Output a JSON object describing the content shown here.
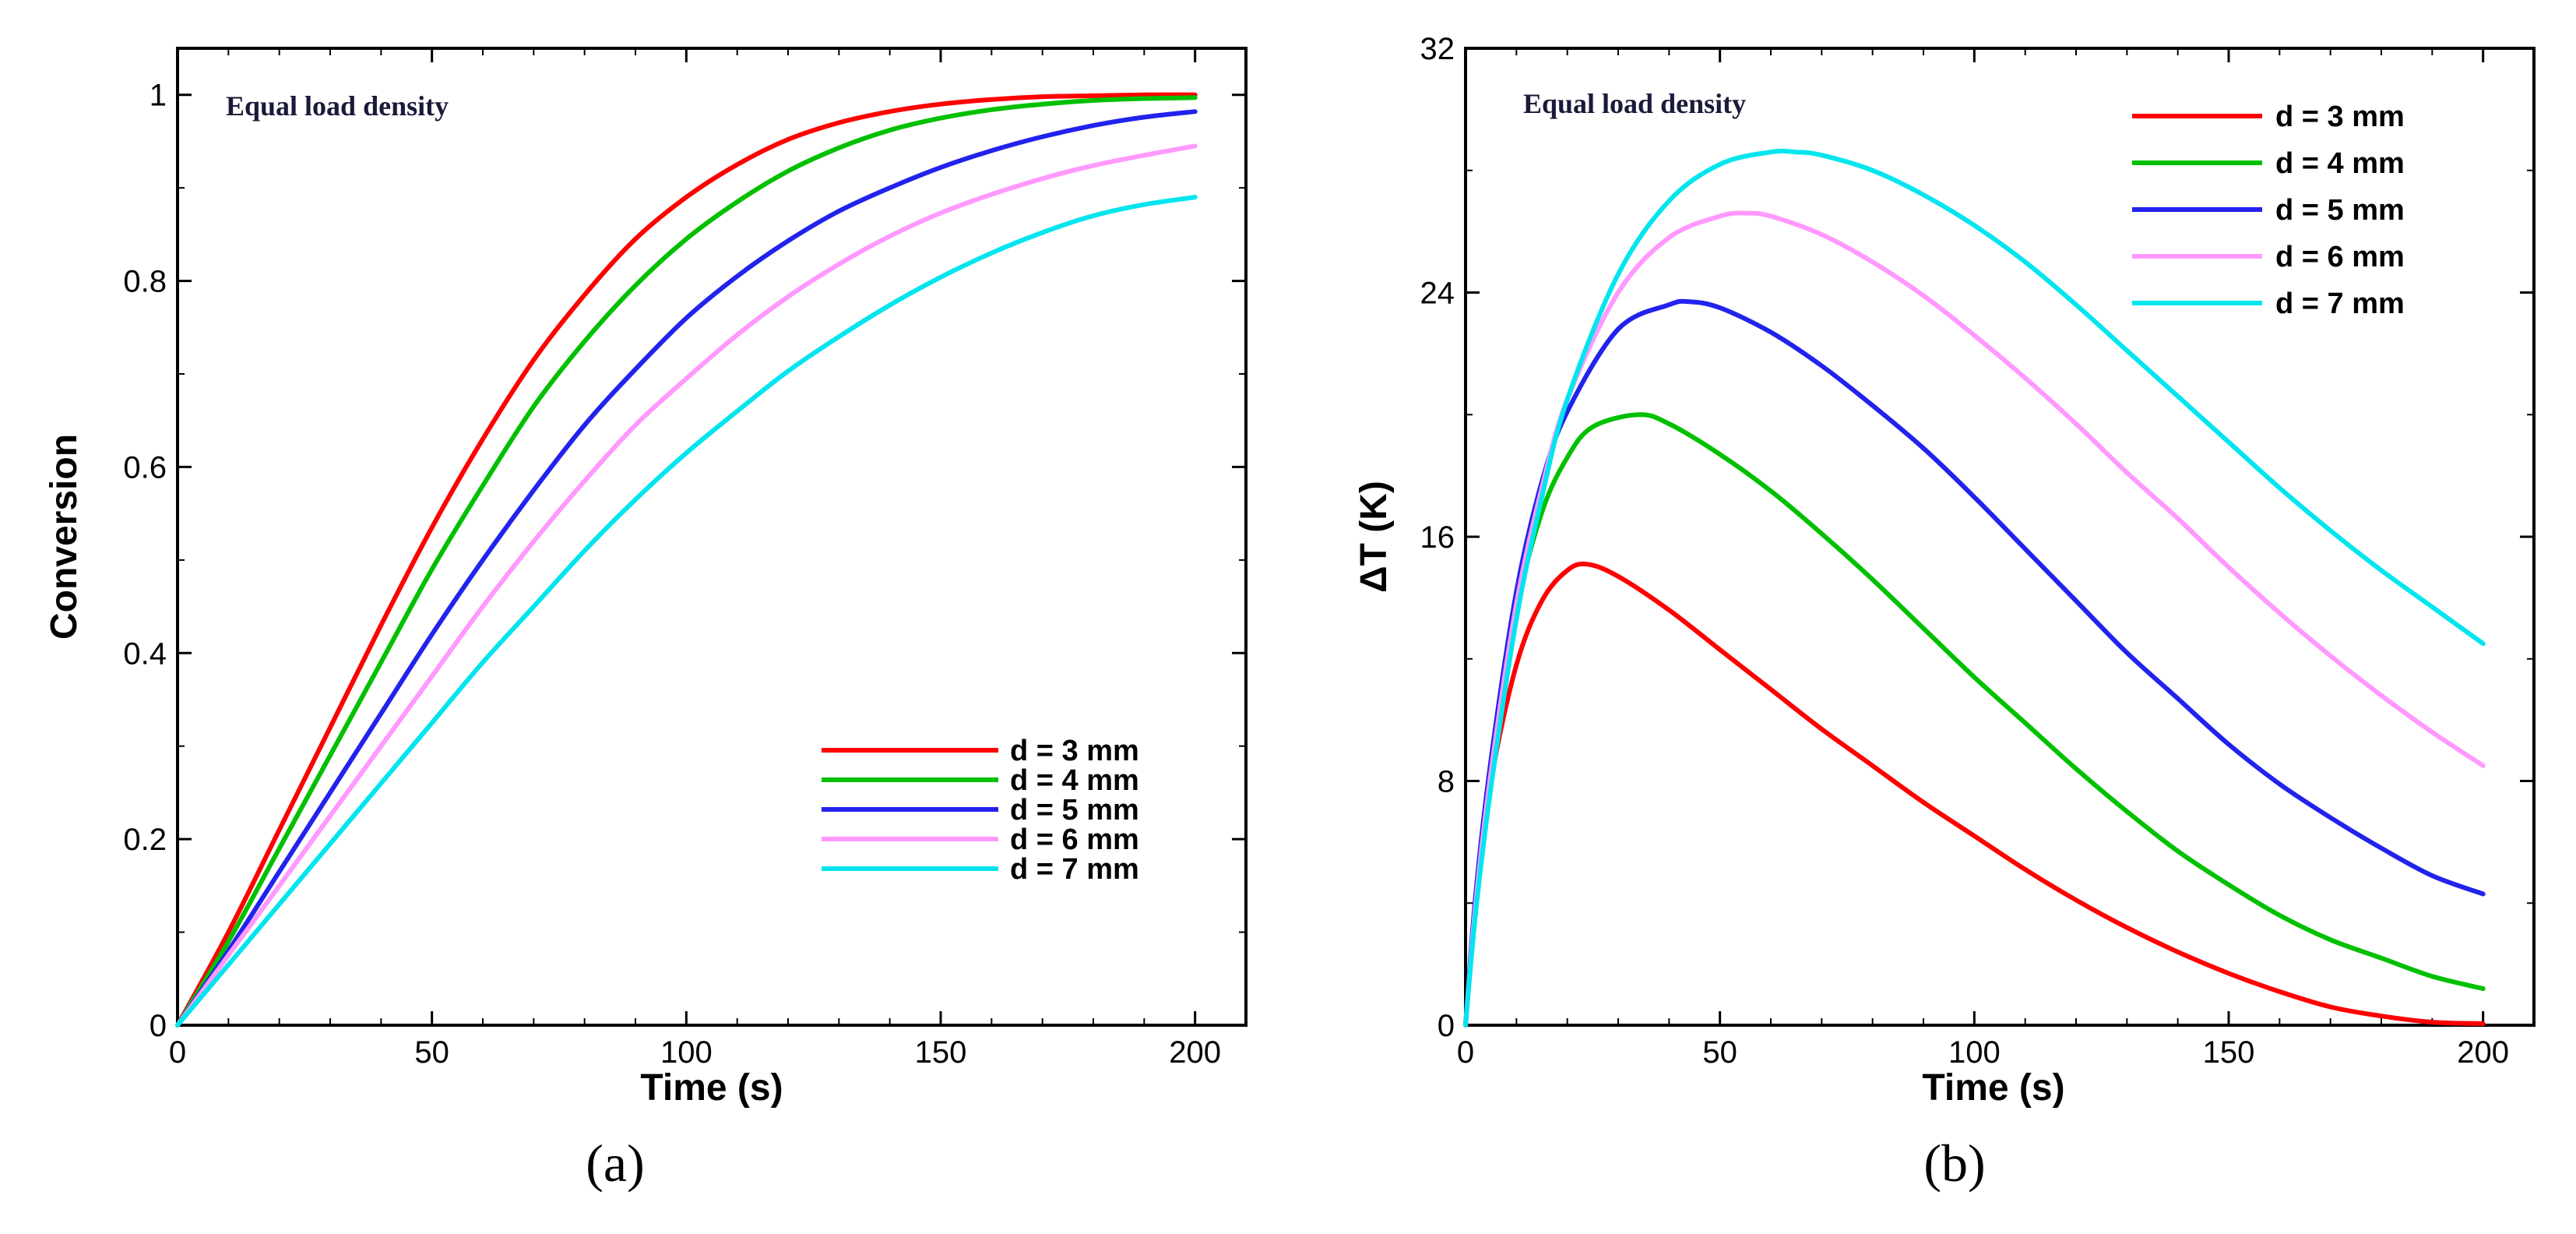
{
  "chart_data": [
    {
      "type": "line",
      "panel_label": "(a)",
      "annotation": "Equal load density",
      "xlabel": "Time (s)",
      "ylabel": "Conversion",
      "xlim": [
        0,
        210
      ],
      "ylim": [
        0,
        1.05
      ],
      "xticks": [
        "0",
        "50",
        "100",
        "150",
        "200"
      ],
      "xtick_values": [
        0,
        50,
        100,
        150,
        200
      ],
      "yticks": [
        "0",
        "0.2",
        "0.4",
        "0.6",
        "0.8",
        "1"
      ],
      "ytick_values": [
        0,
        0.2,
        0.4,
        0.6,
        0.8,
        1.0
      ],
      "grid": false,
      "legend_position": "bottom-right",
      "series": [
        {
          "name": "d = 3 mm",
          "color": "#ff0000",
          "x": [
            0,
            10,
            20,
            30,
            40,
            50,
            60,
            70,
            80,
            90,
            100,
            110,
            120,
            130,
            140,
            150,
            160,
            170,
            180,
            190,
            200
          ],
          "values": [
            0,
            0.1,
            0.21,
            0.32,
            0.43,
            0.535,
            0.63,
            0.715,
            0.785,
            0.845,
            0.89,
            0.925,
            0.952,
            0.97,
            0.982,
            0.99,
            0.995,
            0.998,
            0.999,
            1.0,
            1.0
          ]
        },
        {
          "name": "d = 4 mm",
          "color": "#00c000",
          "x": [
            0,
            10,
            20,
            30,
            40,
            50,
            60,
            70,
            80,
            90,
            100,
            110,
            120,
            130,
            140,
            150,
            160,
            170,
            180,
            190,
            200
          ],
          "values": [
            0,
            0.09,
            0.19,
            0.29,
            0.39,
            0.49,
            0.58,
            0.665,
            0.735,
            0.795,
            0.845,
            0.885,
            0.918,
            0.943,
            0.962,
            0.975,
            0.984,
            0.99,
            0.994,
            0.996,
            0.997
          ]
        },
        {
          "name": "d = 5 mm",
          "color": "#2222ee",
          "x": [
            0,
            10,
            20,
            30,
            40,
            50,
            60,
            70,
            80,
            90,
            100,
            110,
            120,
            130,
            140,
            150,
            160,
            170,
            180,
            190,
            200
          ],
          "values": [
            0,
            0.08,
            0.165,
            0.25,
            0.335,
            0.42,
            0.5,
            0.575,
            0.645,
            0.705,
            0.76,
            0.805,
            0.843,
            0.875,
            0.9,
            0.922,
            0.94,
            0.955,
            0.967,
            0.976,
            0.982
          ]
        },
        {
          "name": "d = 6 mm",
          "color": "#ff99ff",
          "x": [
            0,
            10,
            20,
            30,
            40,
            50,
            60,
            70,
            80,
            90,
            100,
            110,
            120,
            130,
            140,
            150,
            160,
            170,
            180,
            190,
            200
          ],
          "values": [
            0,
            0.075,
            0.15,
            0.225,
            0.3,
            0.375,
            0.45,
            0.52,
            0.585,
            0.645,
            0.695,
            0.742,
            0.783,
            0.818,
            0.848,
            0.873,
            0.893,
            0.91,
            0.924,
            0.935,
            0.945
          ]
        },
        {
          "name": "d = 7 mm",
          "color": "#00e5ee",
          "x": [
            0,
            10,
            20,
            30,
            40,
            50,
            60,
            70,
            80,
            90,
            100,
            110,
            120,
            130,
            140,
            150,
            160,
            170,
            180,
            190,
            200
          ],
          "values": [
            0,
            0.065,
            0.13,
            0.195,
            0.26,
            0.325,
            0.39,
            0.45,
            0.51,
            0.565,
            0.615,
            0.66,
            0.703,
            0.74,
            0.774,
            0.804,
            0.83,
            0.852,
            0.87,
            0.882,
            0.89
          ]
        }
      ]
    },
    {
      "type": "line",
      "panel_label": "(b)",
      "annotation": "Equal load density",
      "xlabel": "Time (s)",
      "ylabel": "ΔT (K)",
      "xlim": [
        0,
        210
      ],
      "ylim": [
        0,
        32
      ],
      "xticks": [
        "0",
        "50",
        "100",
        "150",
        "200"
      ],
      "xtick_values": [
        0,
        50,
        100,
        150,
        200
      ],
      "yticks": [
        "0",
        "8",
        "16",
        "24",
        "32"
      ],
      "ytick_values": [
        0,
        8,
        16,
        24,
        32
      ],
      "grid": false,
      "legend_position": "top-right",
      "series": [
        {
          "name": "d = 3 mm",
          "color": "#ff0000",
          "x": [
            0,
            2,
            5,
            10,
            15,
            20,
            24,
            30,
            40,
            50,
            60,
            70,
            80,
            90,
            100,
            110,
            120,
            130,
            140,
            150,
            160,
            170,
            180,
            190,
            200
          ],
          "values": [
            0,
            4,
            8,
            11.8,
            13.9,
            14.9,
            15.1,
            14.7,
            13.6,
            12.3,
            11.0,
            9.7,
            8.5,
            7.3,
            6.2,
            5.1,
            4.1,
            3.2,
            2.4,
            1.7,
            1.1,
            0.6,
            0.3,
            0.1,
            0.05
          ]
        },
        {
          "name": "d = 4 mm",
          "color": "#00c000",
          "x": [
            0,
            2,
            5,
            10,
            15,
            20,
            25,
            34,
            40,
            50,
            60,
            70,
            80,
            90,
            100,
            110,
            120,
            130,
            140,
            150,
            160,
            170,
            180,
            190,
            200
          ],
          "values": [
            0,
            4.2,
            8.5,
            13.6,
            16.8,
            18.6,
            19.6,
            20.0,
            19.7,
            18.7,
            17.5,
            16.1,
            14.6,
            13.0,
            11.4,
            9.9,
            8.4,
            7.0,
            5.7,
            4.6,
            3.6,
            2.8,
            2.2,
            1.6,
            1.2
          ]
        },
        {
          "name": "d = 5 mm",
          "color": "#2222ee",
          "x": [
            0,
            2,
            5,
            10,
            15,
            20,
            30,
            40,
            44,
            50,
            60,
            70,
            80,
            90,
            100,
            110,
            120,
            130,
            140,
            150,
            160,
            170,
            180,
            190,
            200
          ],
          "values": [
            0,
            4.3,
            8.7,
            14.2,
            17.8,
            20.1,
            22.8,
            23.6,
            23.7,
            23.5,
            22.7,
            21.6,
            20.3,
            18.9,
            17.3,
            15.6,
            13.9,
            12.2,
            10.7,
            9.2,
            7.9,
            6.8,
            5.8,
            4.9,
            4.3
          ]
        },
        {
          "name": "d = 6 mm",
          "color": "#ff99ff",
          "x": [
            0,
            2,
            5,
            10,
            15,
            20,
            30,
            40,
            50,
            55,
            60,
            70,
            80,
            90,
            100,
            110,
            120,
            130,
            140,
            150,
            160,
            170,
            180,
            190,
            200
          ],
          "values": [
            0,
            4.0,
            8.3,
            13.8,
            17.6,
            20.5,
            24.0,
            25.8,
            26.5,
            26.6,
            26.5,
            25.9,
            25.0,
            23.9,
            22.6,
            21.2,
            19.7,
            18.1,
            16.6,
            15.0,
            13.5,
            12.1,
            10.8,
            9.6,
            8.5
          ]
        },
        {
          "name": "d = 7 mm",
          "color": "#00e5ee",
          "x": [
            0,
            2,
            5,
            10,
            15,
            20,
            30,
            40,
            50,
            60,
            65,
            70,
            80,
            90,
            100,
            110,
            120,
            130,
            140,
            150,
            160,
            170,
            180,
            190,
            200
          ],
          "values": [
            0,
            3.7,
            7.8,
            13.3,
            17.3,
            20.5,
            24.6,
            27.0,
            28.2,
            28.6,
            28.6,
            28.5,
            28.0,
            27.2,
            26.2,
            25.0,
            23.6,
            22.1,
            20.6,
            19.1,
            17.6,
            16.2,
            14.9,
            13.7,
            12.5
          ]
        }
      ]
    }
  ]
}
